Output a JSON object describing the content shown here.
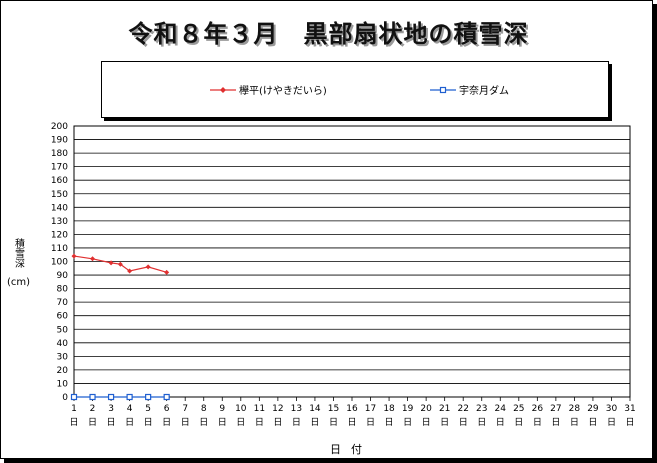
{
  "title": "令和８年３月　黒部扇状地の積雪深",
  "legend": [
    {
      "name": "欅平(けやきだいら)",
      "color": "#e03030",
      "marker": "diamond"
    },
    {
      "name": "宇奈月ダム",
      "color": "#1f5fd0",
      "marker": "square"
    }
  ],
  "ylabel": "積雪深",
  "yunit": "(cm)",
  "xlabel": "日付",
  "day_suffix": "日",
  "chart_data": {
    "type": "line",
    "title": "令和８年３月　黒部扇状地の積雪深",
    "xlabel": "日付",
    "ylabel": "積雪深 (cm)",
    "x": [
      1,
      2,
      3,
      4,
      5,
      6,
      7,
      8,
      9,
      10,
      11,
      12,
      13,
      14,
      15,
      16,
      17,
      18,
      19,
      20,
      21,
      22,
      23,
      24,
      25,
      26,
      27,
      28,
      29,
      30,
      31
    ],
    "xlim": [
      1,
      31
    ],
    "ylim": [
      0,
      200
    ],
    "ytick_step": 10,
    "grid": true,
    "legend_position": "top",
    "series": [
      {
        "name": "欅平(けやきだいら)",
        "color": "#e03030",
        "marker": "diamond",
        "x": [
          1,
          2,
          3,
          3.5,
          4,
          5,
          6
        ],
        "values": [
          104,
          102,
          99,
          98,
          93,
          96,
          92
        ]
      },
      {
        "name": "宇奈月ダム",
        "color": "#1f5fd0",
        "marker": "square",
        "x": [
          1,
          2,
          3,
          4,
          5,
          6
        ],
        "values": [
          0,
          0,
          0,
          0,
          0,
          0
        ]
      }
    ]
  }
}
